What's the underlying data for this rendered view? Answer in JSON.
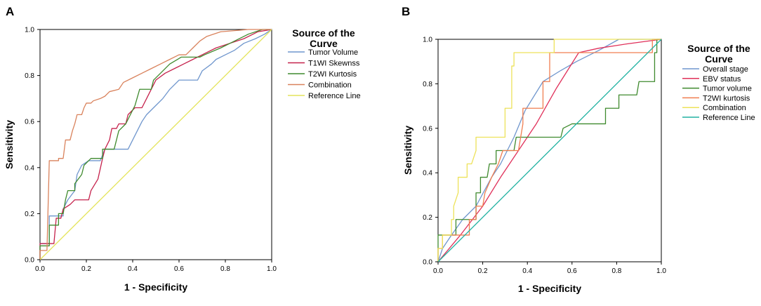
{
  "chart_data": [
    {
      "panel_label": "A",
      "type": "line",
      "title": "",
      "xlabel": "1 - Specificity",
      "ylabel": "Sensitivity",
      "xlim": [
        0,
        1
      ],
      "ylim": [
        0,
        1
      ],
      "xticks": [
        "0.0",
        "0.2",
        "0.4",
        "0.6",
        "0.8",
        "1.0"
      ],
      "yticks": [
        "0.0",
        "0.2",
        "0.4",
        "0.6",
        "0.8",
        "1.0"
      ],
      "grid": false,
      "legend": {
        "title": "Source of the Curve",
        "title_lines": [
          "Source of the",
          "Curve"
        ],
        "placement": "right"
      },
      "series": [
        {
          "name": "Tumor Volume",
          "color": "#6f96cd",
          "points": [
            [
              0,
              0
            ],
            [
              0,
              0.07
            ],
            [
              0.04,
              0.07
            ],
            [
              0.04,
              0.19
            ],
            [
              0.08,
              0.19
            ],
            [
              0.1,
              0.19
            ],
            [
              0.1,
              0.22
            ],
            [
              0.12,
              0.26
            ],
            [
              0.15,
              0.3
            ],
            [
              0.16,
              0.37
            ],
            [
              0.18,
              0.41
            ],
            [
              0.21,
              0.43
            ],
            [
              0.26,
              0.43
            ],
            [
              0.28,
              0.48
            ],
            [
              0.36,
              0.48
            ],
            [
              0.38,
              0.48
            ],
            [
              0.4,
              0.52
            ],
            [
              0.42,
              0.56
            ],
            [
              0.44,
              0.6
            ],
            [
              0.46,
              0.63
            ],
            [
              0.5,
              0.67
            ],
            [
              0.53,
              0.7
            ],
            [
              0.56,
              0.74
            ],
            [
              0.6,
              0.78
            ],
            [
              0.68,
              0.78
            ],
            [
              0.7,
              0.82
            ],
            [
              0.74,
              0.85
            ],
            [
              0.76,
              0.87
            ],
            [
              0.8,
              0.89
            ],
            [
              0.84,
              0.91
            ],
            [
              0.88,
              0.94
            ],
            [
              0.93,
              0.96
            ],
            [
              0.97,
              0.98
            ],
            [
              1,
              1
            ]
          ]
        },
        {
          "name": "T1WI Skewnss",
          "color": "#c5224c",
          "points": [
            [
              0,
              0
            ],
            [
              0,
              0.07
            ],
            [
              0.06,
              0.07
            ],
            [
              0.07,
              0.18
            ],
            [
              0.09,
              0.18
            ],
            [
              0.1,
              0.22
            ],
            [
              0.13,
              0.24
            ],
            [
              0.15,
              0.26
            ],
            [
              0.21,
              0.26
            ],
            [
              0.22,
              0.3
            ],
            [
              0.25,
              0.35
            ],
            [
              0.27,
              0.44
            ],
            [
              0.28,
              0.48
            ],
            [
              0.3,
              0.52
            ],
            [
              0.31,
              0.57
            ],
            [
              0.33,
              0.57
            ],
            [
              0.34,
              0.59
            ],
            [
              0.37,
              0.59
            ],
            [
              0.38,
              0.63
            ],
            [
              0.41,
              0.66
            ],
            [
              0.44,
              0.66
            ],
            [
              0.46,
              0.7
            ],
            [
              0.48,
              0.74
            ],
            [
              0.5,
              0.78
            ],
            [
              0.54,
              0.81
            ],
            [
              0.58,
              0.83
            ],
            [
              0.62,
              0.85
            ],
            [
              0.66,
              0.87
            ],
            [
              0.7,
              0.89
            ],
            [
              0.76,
              0.92
            ],
            [
              0.82,
              0.94
            ],
            [
              0.88,
              0.96
            ],
            [
              0.94,
              0.99
            ],
            [
              1,
              1
            ]
          ]
        },
        {
          "name": "T2WI Kurtosis",
          "color": "#3f8a2e",
          "points": [
            [
              0,
              0
            ],
            [
              0,
              0.06
            ],
            [
              0.04,
              0.06
            ],
            [
              0.04,
              0.15
            ],
            [
              0.08,
              0.15
            ],
            [
              0.08,
              0.2
            ],
            [
              0.1,
              0.2
            ],
            [
              0.11,
              0.26
            ],
            [
              0.12,
              0.3
            ],
            [
              0.15,
              0.3
            ],
            [
              0.15,
              0.33
            ],
            [
              0.18,
              0.37
            ],
            [
              0.19,
              0.41
            ],
            [
              0.22,
              0.44
            ],
            [
              0.27,
              0.44
            ],
            [
              0.27,
              0.48
            ],
            [
              0.32,
              0.48
            ],
            [
              0.33,
              0.52
            ],
            [
              0.34,
              0.56
            ],
            [
              0.37,
              0.59
            ],
            [
              0.39,
              0.63
            ],
            [
              0.41,
              0.67
            ],
            [
              0.43,
              0.74
            ],
            [
              0.48,
              0.74
            ],
            [
              0.49,
              0.78
            ],
            [
              0.53,
              0.82
            ],
            [
              0.56,
              0.85
            ],
            [
              0.61,
              0.88
            ],
            [
              0.69,
              0.88
            ],
            [
              0.71,
              0.89
            ],
            [
              0.78,
              0.92
            ],
            [
              0.84,
              0.95
            ],
            [
              0.9,
              0.98
            ],
            [
              0.96,
              1
            ],
            [
              1,
              1
            ]
          ]
        },
        {
          "name": "Combination",
          "color": "#d9825c",
          "points": [
            [
              0,
              0
            ],
            [
              0,
              0.04
            ],
            [
              0.03,
              0.04
            ],
            [
              0.04,
              0.43
            ],
            [
              0.08,
              0.43
            ],
            [
              0.08,
              0.44
            ],
            [
              0.1,
              0.44
            ],
            [
              0.11,
              0.52
            ],
            [
              0.13,
              0.52
            ],
            [
              0.14,
              0.56
            ],
            [
              0.15,
              0.59
            ],
            [
              0.16,
              0.63
            ],
            [
              0.18,
              0.63
            ],
            [
              0.19,
              0.66
            ],
            [
              0.2,
              0.68
            ],
            [
              0.22,
              0.68
            ],
            [
              0.23,
              0.69
            ],
            [
              0.26,
              0.7
            ],
            [
              0.28,
              0.71
            ],
            [
              0.3,
              0.73
            ],
            [
              0.34,
              0.74
            ],
            [
              0.36,
              0.77
            ],
            [
              0.4,
              0.79
            ],
            [
              0.44,
              0.81
            ],
            [
              0.48,
              0.83
            ],
            [
              0.52,
              0.85
            ],
            [
              0.56,
              0.87
            ],
            [
              0.6,
              0.89
            ],
            [
              0.63,
              0.89
            ],
            [
              0.66,
              0.92
            ],
            [
              0.69,
              0.95
            ],
            [
              0.72,
              0.97
            ],
            [
              0.78,
              0.99
            ],
            [
              0.9,
              1
            ],
            [
              1,
              1
            ]
          ]
        },
        {
          "name": "Reference Line",
          "color": "#e4e45c",
          "points": [
            [
              0,
              0
            ],
            [
              1,
              1
            ]
          ]
        }
      ]
    },
    {
      "panel_label": "B",
      "type": "line",
      "title": "",
      "xlabel": "1 - Specificity",
      "ylabel": "Sensitivity",
      "xlim": [
        0,
        1
      ],
      "ylim": [
        0,
        1
      ],
      "xticks": [
        "0.0",
        "0.2",
        "0.4",
        "0.6",
        "0.8",
        "1.0"
      ],
      "yticks": [
        "0.0",
        "0.2",
        "0.4",
        "0.6",
        "0.8",
        "1.0"
      ],
      "grid": false,
      "legend": {
        "title": "Source of the Curve",
        "title_lines": [
          "Source of the",
          "Curve"
        ],
        "placement": "right"
      },
      "series": [
        {
          "name": "Overall stage",
          "color": "#6f96cd",
          "points": [
            [
              0,
              0
            ],
            [
              0.02,
              0.06
            ],
            [
              0.06,
              0.12
            ],
            [
              0.11,
              0.19
            ],
            [
              0.17,
              0.25
            ],
            [
              0.24,
              0.38
            ],
            [
              0.28,
              0.44
            ],
            [
              0.34,
              0.56
            ],
            [
              0.39,
              0.68
            ],
            [
              0.47,
              0.81
            ],
            [
              0.55,
              0.86
            ],
            [
              0.62,
              0.9
            ],
            [
              0.72,
              0.95
            ],
            [
              0.81,
              1
            ],
            [
              0.97,
              1
            ],
            [
              1,
              1
            ]
          ]
        },
        {
          "name": "EBV status",
          "color": "#e0305a",
          "points": [
            [
              0,
              0
            ],
            [
              0.1,
              0.12
            ],
            [
              0.2,
              0.25
            ],
            [
              0.28,
              0.38
            ],
            [
              0.36,
              0.5
            ],
            [
              0.44,
              0.62
            ],
            [
              0.53,
              0.78
            ],
            [
              0.63,
              0.94
            ],
            [
              0.72,
              0.96
            ],
            [
              0.85,
              0.98
            ],
            [
              1,
              1
            ]
          ]
        },
        {
          "name": "Tumor volume",
          "color": "#3f8a2e",
          "points": [
            [
              0,
              0
            ],
            [
              0,
              0.12
            ],
            [
              0.08,
              0.12
            ],
            [
              0.08,
              0.19
            ],
            [
              0.17,
              0.19
            ],
            [
              0.17,
              0.31
            ],
            [
              0.19,
              0.31
            ],
            [
              0.19,
              0.38
            ],
            [
              0.22,
              0.38
            ],
            [
              0.23,
              0.44
            ],
            [
              0.26,
              0.44
            ],
            [
              0.26,
              0.5
            ],
            [
              0.34,
              0.5
            ],
            [
              0.35,
              0.56
            ],
            [
              0.5,
              0.56
            ],
            [
              0.55,
              0.56
            ],
            [
              0.56,
              0.6
            ],
            [
              0.6,
              0.62
            ],
            [
              0.67,
              0.62
            ],
            [
              0.75,
              0.62
            ],
            [
              0.75,
              0.69
            ],
            [
              0.81,
              0.69
            ],
            [
              0.81,
              0.75
            ],
            [
              0.89,
              0.75
            ],
            [
              0.9,
              0.81
            ],
            [
              0.97,
              0.81
            ],
            [
              0.97,
              0.94
            ],
            [
              0.98,
              0.94
            ],
            [
              0.98,
              1
            ],
            [
              1,
              1
            ]
          ]
        },
        {
          "name": "T2WI kurtosis",
          "color": "#f07e50",
          "points": [
            [
              0,
              0
            ],
            [
              0,
              0.06
            ],
            [
              0.02,
              0.06
            ],
            [
              0.02,
              0.12
            ],
            [
              0.14,
              0.12
            ],
            [
              0.14,
              0.19
            ],
            [
              0.17,
              0.19
            ],
            [
              0.17,
              0.25
            ],
            [
              0.2,
              0.25
            ],
            [
              0.21,
              0.31
            ],
            [
              0.24,
              0.38
            ],
            [
              0.27,
              0.44
            ],
            [
              0.29,
              0.5
            ],
            [
              0.36,
              0.5
            ],
            [
              0.37,
              0.56
            ],
            [
              0.38,
              0.62
            ],
            [
              0.38,
              0.69
            ],
            [
              0.47,
              0.69
            ],
            [
              0.47,
              0.81
            ],
            [
              0.5,
              0.81
            ],
            [
              0.5,
              0.94
            ],
            [
              0.96,
              0.94
            ],
            [
              0.96,
              1
            ],
            [
              1,
              1
            ]
          ]
        },
        {
          "name": "Combination",
          "color": "#ede25a",
          "points": [
            [
              0,
              0
            ],
            [
              0,
              0.06
            ],
            [
              0.02,
              0.06
            ],
            [
              0.02,
              0.12
            ],
            [
              0.06,
              0.12
            ],
            [
              0.06,
              0.19
            ],
            [
              0.07,
              0.19
            ],
            [
              0.07,
              0.25
            ],
            [
              0.09,
              0.31
            ],
            [
              0.09,
              0.38
            ],
            [
              0.13,
              0.38
            ],
            [
              0.13,
              0.44
            ],
            [
              0.15,
              0.44
            ],
            [
              0.17,
              0.5
            ],
            [
              0.17,
              0.56
            ],
            [
              0.3,
              0.56
            ],
            [
              0.3,
              0.69
            ],
            [
              0.33,
              0.69
            ],
            [
              0.33,
              0.88
            ],
            [
              0.34,
              0.88
            ],
            [
              0.34,
              0.94
            ],
            [
              0.52,
              0.94
            ],
            [
              0.52,
              1
            ],
            [
              1,
              1
            ]
          ]
        },
        {
          "name": "Reference Line",
          "color": "#22b2a2",
          "points": [
            [
              0,
              0
            ],
            [
              1,
              1
            ]
          ]
        }
      ]
    }
  ]
}
